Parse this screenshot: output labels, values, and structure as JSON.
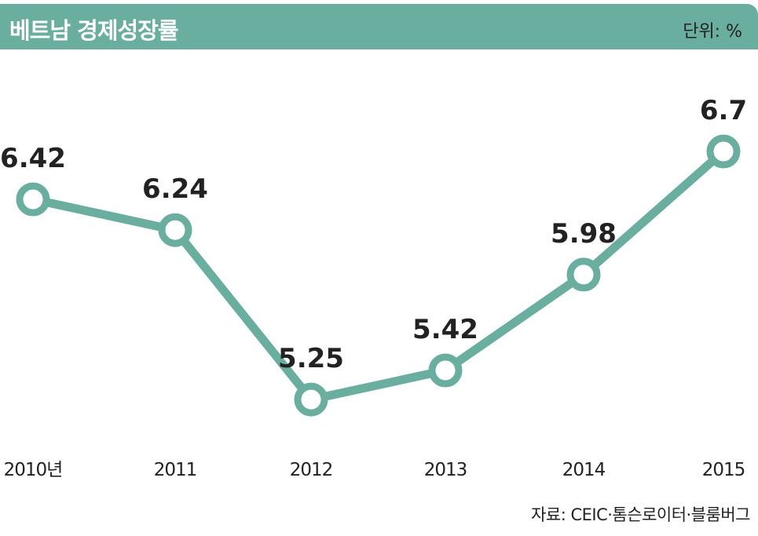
{
  "header": {
    "title": "베트남 경제성장률",
    "unit": "단위: %"
  },
  "source": "자료: CEIC·톰슨로이터·블룸버그",
  "colors": {
    "accent": "#6aaea0",
    "text": "#222222",
    "background": "#ffffff"
  },
  "chart_data": {
    "type": "line",
    "categories": [
      "2010년",
      "2011",
      "2012",
      "2013",
      "2014",
      "2015"
    ],
    "series": [
      {
        "values": [
          6.42,
          6.24,
          5.25,
          5.42,
          5.98,
          6.7
        ]
      }
    ],
    "data_labels": [
      "6.42",
      "6.24",
      "5.25",
      "5.42",
      "5.98",
      "6.7"
    ],
    "title": "베트남 경제성장률",
    "unit": "%",
    "grid": false,
    "legend": "none"
  }
}
